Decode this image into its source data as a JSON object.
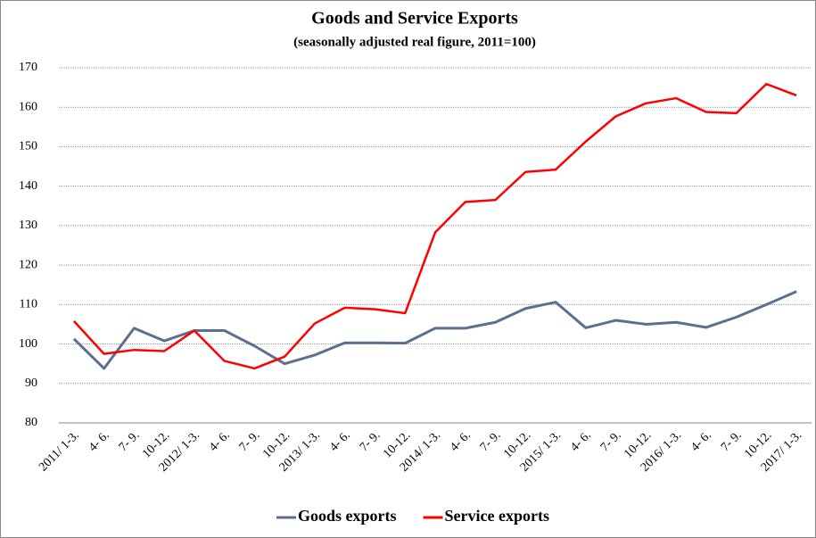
{
  "chart_data": {
    "type": "line",
    "title": "Goods and Service Exports",
    "subtitle": "(seasonally adjusted real figure, 2011=100)",
    "categories": [
      "2011/ 1-3.",
      "4- 6.",
      "7- 9.",
      "10-12.",
      "2012/ 1-3.",
      "4- 6.",
      "7- 9.",
      "10-12.",
      "2013/ 1-3.",
      "4- 6.",
      "7- 9.",
      "10-12.",
      "2014/ 1-3.",
      "4- 6.",
      "7- 9.",
      "10-12.",
      "2015/ 1-3.",
      "4- 6.",
      "7- 9.",
      "10-12.",
      "2016/ 1-3.",
      "4- 6.",
      "7- 9.",
      "10-12.",
      "2017/ 1-3."
    ],
    "series": [
      {
        "name": "Goods exports",
        "color": "#5b6f8f",
        "values": [
          101.3,
          93.8,
          104,
          100.8,
          103.4,
          103.4,
          99.5,
          95,
          97.2,
          100.3,
          100.3,
          100.2,
          104,
          104,
          105.5,
          109,
          110.6,
          104.1,
          106,
          105,
          105.5,
          104.2,
          106.8,
          110,
          113.3
        ]
      },
      {
        "name": "Service exports",
        "color": "#ff0000",
        "values": [
          105.8,
          97.5,
          98.5,
          98.2,
          103.4,
          95.7,
          93.8,
          96.8,
          105.2,
          109.2,
          108.8,
          107.8,
          128.3,
          136,
          136.5,
          143.6,
          144.2,
          151.3,
          157.7,
          161,
          162.3,
          158.8,
          158.5,
          165.9,
          163
        ]
      }
    ],
    "ylim": [
      80,
      170
    ],
    "yticks": [
      80,
      90,
      100,
      110,
      120,
      130,
      140,
      150,
      160,
      170
    ],
    "grid": true,
    "legend": "bottom"
  }
}
